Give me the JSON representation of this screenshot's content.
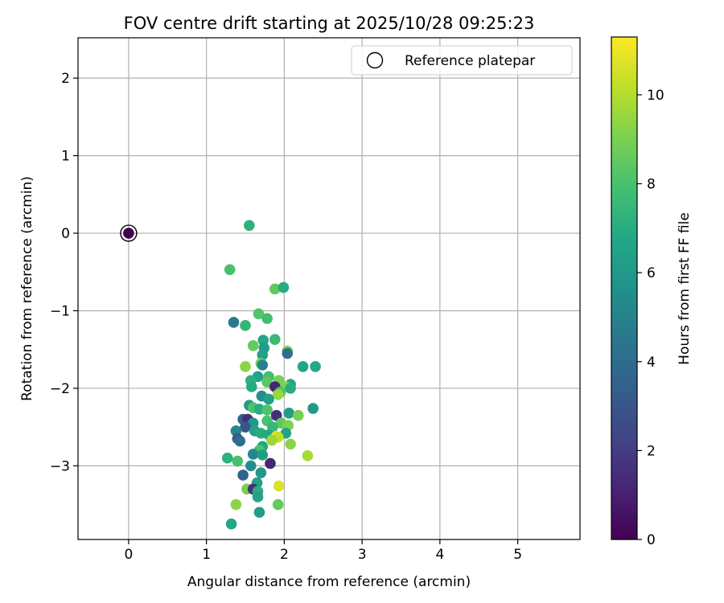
{
  "chart_data": {
    "type": "scatter",
    "title": "FOV centre drift starting at 2025/10/28 09:25:23",
    "xlabel": "Angular distance from reference (arcmin)",
    "ylabel": "Rotation from reference (arcmin)",
    "xlim": [
      -0.65,
      5.8
    ],
    "ylim": [
      -3.95,
      2.52
    ],
    "xticks": [
      0,
      1,
      2,
      3,
      4,
      5
    ],
    "yticks": [
      -3,
      -2,
      -1,
      0,
      1,
      2
    ],
    "grid": true,
    "legend": {
      "position": "top-right",
      "entries": [
        "Reference platepar"
      ]
    },
    "colorbar": {
      "label": "Hours from first FF file",
      "colormap": "viridis",
      "min": 0,
      "max": 11.3,
      "ticks": [
        0,
        2,
        4,
        6,
        8,
        10
      ]
    },
    "reference_point": {
      "x": 0,
      "y": 0,
      "c": 0
    },
    "series": [
      {
        "points": [
          {
            "x": 1.55,
            "y": 0.1,
            "c": 7.2
          },
          {
            "x": 1.3,
            "y": -0.47,
            "c": 8.0
          },
          {
            "x": 1.88,
            "y": -0.72,
            "c": 8.5
          },
          {
            "x": 1.99,
            "y": -0.7,
            "c": 7.0
          },
          {
            "x": 1.67,
            "y": -1.04,
            "c": 8.2
          },
          {
            "x": 1.78,
            "y": -1.1,
            "c": 7.8
          },
          {
            "x": 1.35,
            "y": -1.15,
            "c": 4.5
          },
          {
            "x": 1.5,
            "y": -1.19,
            "c": 7.4
          },
          {
            "x": 1.73,
            "y": -1.38,
            "c": 6.8
          },
          {
            "x": 1.88,
            "y": -1.37,
            "c": 7.6
          },
          {
            "x": 1.6,
            "y": -1.45,
            "c": 8.6
          },
          {
            "x": 1.74,
            "y": -1.48,
            "c": 6.2
          },
          {
            "x": 2.04,
            "y": -1.52,
            "c": 9.1
          },
          {
            "x": 2.04,
            "y": -1.55,
            "c": 4.1
          },
          {
            "x": 1.72,
            "y": -1.57,
            "c": 6.5
          },
          {
            "x": 1.7,
            "y": -1.68,
            "c": 8.9
          },
          {
            "x": 1.72,
            "y": -1.7,
            "c": 5.0
          },
          {
            "x": 2.24,
            "y": -1.72,
            "c": 6.6
          },
          {
            "x": 2.4,
            "y": -1.72,
            "c": 6.8
          },
          {
            "x": 1.5,
            "y": -1.72,
            "c": 9.3
          },
          {
            "x": 1.66,
            "y": -1.85,
            "c": 6.5
          },
          {
            "x": 1.8,
            "y": -1.85,
            "c": 7.8
          },
          {
            "x": 1.57,
            "y": -1.9,
            "c": 7.2
          },
          {
            "x": 1.93,
            "y": -1.9,
            "c": 9.0
          },
          {
            "x": 1.78,
            "y": -1.92,
            "c": 8.4
          },
          {
            "x": 2.08,
            "y": -1.95,
            "c": 6.8
          },
          {
            "x": 1.58,
            "y": -1.98,
            "c": 6.9
          },
          {
            "x": 1.88,
            "y": -1.98,
            "c": 1.2
          },
          {
            "x": 2.02,
            "y": -1.98,
            "c": 9.1
          },
          {
            "x": 2.08,
            "y": -2.0,
            "c": 7.0
          },
          {
            "x": 1.95,
            "y": -2.05,
            "c": 8.2
          },
          {
            "x": 1.92,
            "y": -2.08,
            "c": 9.5
          },
          {
            "x": 1.71,
            "y": -2.1,
            "c": 5.6
          },
          {
            "x": 1.8,
            "y": -2.14,
            "c": 6.5
          },
          {
            "x": 1.55,
            "y": -2.22,
            "c": 6.0
          },
          {
            "x": 1.6,
            "y": -2.25,
            "c": 8.1
          },
          {
            "x": 1.68,
            "y": -2.27,
            "c": 7.0
          },
          {
            "x": 1.78,
            "y": -2.28,
            "c": 8.1
          },
          {
            "x": 2.37,
            "y": -2.26,
            "c": 6.0
          },
          {
            "x": 2.06,
            "y": -2.32,
            "c": 6.3
          },
          {
            "x": 2.18,
            "y": -2.35,
            "c": 9.0
          },
          {
            "x": 1.9,
            "y": -2.35,
            "c": 1.5
          },
          {
            "x": 1.47,
            "y": -2.4,
            "c": 3.5
          },
          {
            "x": 1.53,
            "y": -2.4,
            "c": 1.5
          },
          {
            "x": 1.78,
            "y": -2.42,
            "c": 8.0
          },
          {
            "x": 1.6,
            "y": -2.45,
            "c": 6.0
          },
          {
            "x": 1.96,
            "y": -2.45,
            "c": 8.5
          },
          {
            "x": 2.05,
            "y": -2.48,
            "c": 9.1
          },
          {
            "x": 1.5,
            "y": -2.5,
            "c": 3.0
          },
          {
            "x": 1.85,
            "y": -2.5,
            "c": 7.5
          },
          {
            "x": 1.38,
            "y": -2.55,
            "c": 5.2
          },
          {
            "x": 1.62,
            "y": -2.55,
            "c": 6.5
          },
          {
            "x": 1.7,
            "y": -2.58,
            "c": 7.0
          },
          {
            "x": 2.02,
            "y": -2.58,
            "c": 6.5
          },
          {
            "x": 1.8,
            "y": -2.6,
            "c": 6.8
          },
          {
            "x": 1.9,
            "y": -2.62,
            "c": 11.2
          },
          {
            "x": 1.92,
            "y": -2.63,
            "c": 10.3
          },
          {
            "x": 1.4,
            "y": -2.65,
            "c": 3.2
          },
          {
            "x": 1.43,
            "y": -2.68,
            "c": 4.1
          },
          {
            "x": 1.84,
            "y": -2.67,
            "c": 9.6
          },
          {
            "x": 2.08,
            "y": -2.72,
            "c": 9.3
          },
          {
            "x": 1.72,
            "y": -2.75,
            "c": 6.8
          },
          {
            "x": 1.68,
            "y": -2.8,
            "c": 8.1
          },
          {
            "x": 1.6,
            "y": -2.85,
            "c": 5.2
          },
          {
            "x": 1.72,
            "y": -2.86,
            "c": 6.3
          },
          {
            "x": 2.3,
            "y": -2.87,
            "c": 9.8
          },
          {
            "x": 1.27,
            "y": -2.9,
            "c": 7.2
          },
          {
            "x": 1.4,
            "y": -2.94,
            "c": 8.0
          },
          {
            "x": 1.82,
            "y": -2.97,
            "c": 1.2
          },
          {
            "x": 1.57,
            "y": -3.0,
            "c": 5.5
          },
          {
            "x": 1.7,
            "y": -3.09,
            "c": 6.0
          },
          {
            "x": 1.47,
            "y": -3.12,
            "c": 3.5
          },
          {
            "x": 1.65,
            "y": -3.22,
            "c": 6.5
          },
          {
            "x": 1.93,
            "y": -3.26,
            "c": 10.7
          },
          {
            "x": 1.52,
            "y": -3.3,
            "c": 9.0
          },
          {
            "x": 1.6,
            "y": -3.3,
            "c": 1.5
          },
          {
            "x": 1.66,
            "y": -3.33,
            "c": 7.0
          },
          {
            "x": 1.66,
            "y": -3.4,
            "c": 6.5
          },
          {
            "x": 1.38,
            "y": -3.5,
            "c": 9.3
          },
          {
            "x": 1.92,
            "y": -3.5,
            "c": 8.6
          },
          {
            "x": 1.68,
            "y": -3.6,
            "c": 6.3
          },
          {
            "x": 1.32,
            "y": -3.75,
            "c": 6.8
          }
        ]
      }
    ]
  }
}
